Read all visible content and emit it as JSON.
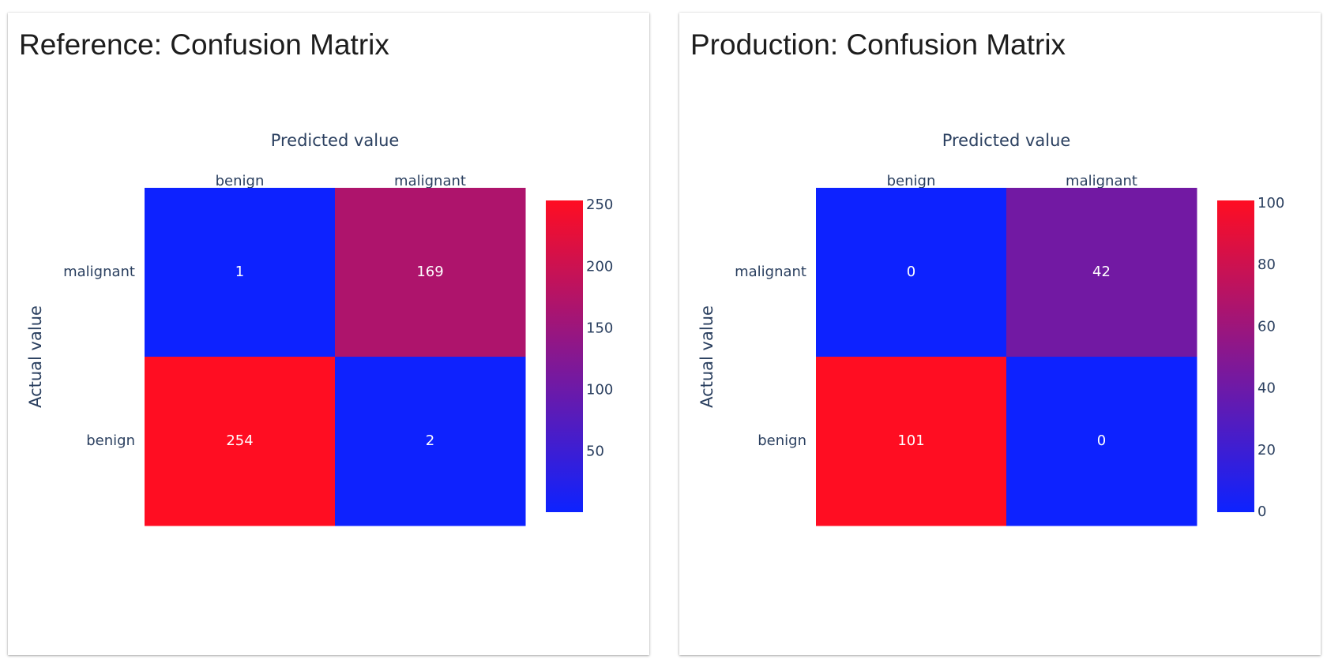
{
  "charts": [
    {
      "title": "Reference: Confusion Matrix",
      "chart_data": {
        "type": "heatmap",
        "x_categories": [
          "benign",
          "malignant"
        ],
        "y_categories": [
          "malignant",
          "benign"
        ],
        "values": [
          [
            1,
            169
          ],
          [
            254,
            2
          ]
        ],
        "xlabel": "Predicted value",
        "ylabel": "Actual value",
        "color_range": [
          1,
          254
        ],
        "colorbar_ticks": [
          50,
          100,
          150,
          200,
          250
        ],
        "colorscale": [
          "#0d22ff",
          "#ff0d22"
        ],
        "x_axis_position": "top"
      }
    },
    {
      "title": "Production: Confusion Matrix",
      "chart_data": {
        "type": "heatmap",
        "x_categories": [
          "benign",
          "malignant"
        ],
        "y_categories": [
          "malignant",
          "benign"
        ],
        "values": [
          [
            0,
            42
          ],
          [
            101,
            0
          ]
        ],
        "xlabel": "Predicted value",
        "ylabel": "Actual value",
        "color_range": [
          0,
          101
        ],
        "colorbar_ticks": [
          0,
          20,
          40,
          60,
          80,
          100
        ],
        "colorscale": [
          "#0d22ff",
          "#ff0d22"
        ],
        "x_axis_position": "top"
      }
    }
  ]
}
